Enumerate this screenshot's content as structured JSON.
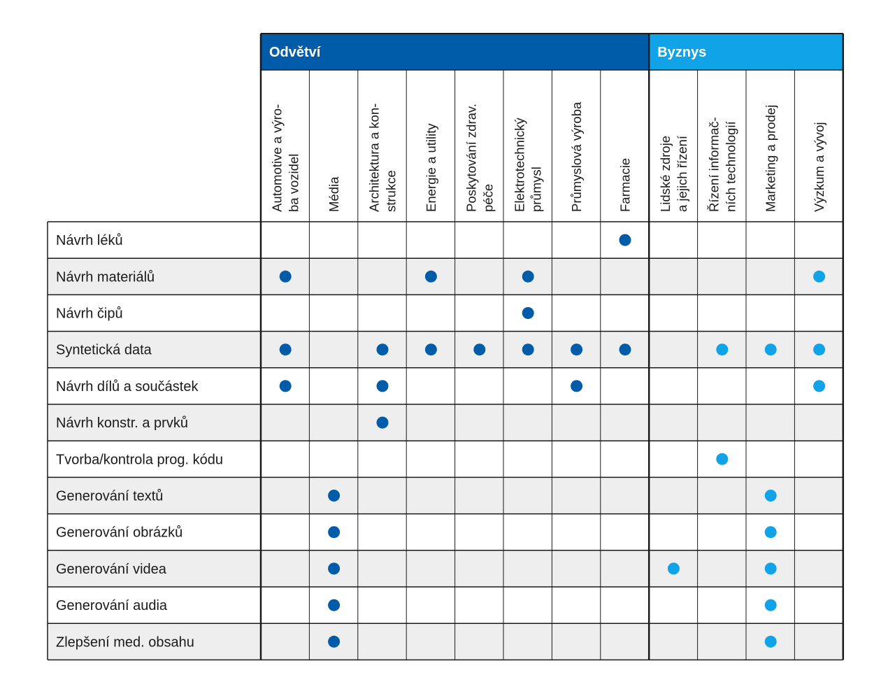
{
  "groups": [
    {
      "label": "Odvětví",
      "color": "#005ca9",
      "span": 8
    },
    {
      "label": "Byznys",
      "color": "#10a3e7",
      "span": 4
    }
  ],
  "columns": [
    {
      "lines": [
        "Automotive a výro-",
        "ba vozidel"
      ],
      "group": 0
    },
    {
      "lines": [
        "Média"
      ],
      "group": 0
    },
    {
      "lines": [
        "Architektura a kon-",
        "strukce"
      ],
      "group": 0
    },
    {
      "lines": [
        "Energie a utility"
      ],
      "group": 0
    },
    {
      "lines": [
        "Poskytování zdrav.",
        "péče"
      ],
      "group": 0
    },
    {
      "lines": [
        "Elektrotechnický",
        "průmysl"
      ],
      "group": 0
    },
    {
      "lines": [
        "Průmyslová výroba"
      ],
      "group": 0
    },
    {
      "lines": [
        "Farmacie"
      ],
      "group": 0
    },
    {
      "lines": [
        "Lidské zdroje",
        "a jejich řízení"
      ],
      "group": 1
    },
    {
      "lines": [
        "Řízení informač-",
        "ních technologií"
      ],
      "group": 1
    },
    {
      "lines": [
        "Marketing a prodej"
      ],
      "group": 1
    },
    {
      "lines": [
        "Výzkum a vývoj"
      ],
      "group": 1
    }
  ],
  "rows": [
    {
      "label": "Návrh léků",
      "marks": [
        0,
        0,
        0,
        0,
        0,
        0,
        0,
        1,
        0,
        0,
        0,
        0
      ]
    },
    {
      "label": "Návrh materiálů",
      "marks": [
        1,
        0,
        0,
        1,
        0,
        1,
        0,
        0,
        0,
        0,
        0,
        1
      ]
    },
    {
      "label": "Návrh čipů",
      "marks": [
        0,
        0,
        0,
        0,
        0,
        1,
        0,
        0,
        0,
        0,
        0,
        0
      ]
    },
    {
      "label": "Syntetická data",
      "marks": [
        1,
        0,
        1,
        1,
        1,
        1,
        1,
        1,
        0,
        1,
        1,
        1
      ]
    },
    {
      "label": "Návrh dílů a součástek",
      "marks": [
        1,
        0,
        1,
        0,
        0,
        0,
        1,
        0,
        0,
        0,
        0,
        1
      ]
    },
    {
      "label": "Návrh konstr. a prvků",
      "marks": [
        0,
        0,
        1,
        0,
        0,
        0,
        0,
        0,
        0,
        0,
        0,
        0
      ]
    },
    {
      "label": "Tvorba/kontrola prog. kódu",
      "marks": [
        0,
        0,
        0,
        0,
        0,
        0,
        0,
        0,
        0,
        1,
        0,
        0
      ]
    },
    {
      "label": "Generování textů",
      "marks": [
        0,
        1,
        0,
        0,
        0,
        0,
        0,
        0,
        0,
        0,
        1,
        0
      ]
    },
    {
      "label": "Generování obrázků",
      "marks": [
        0,
        1,
        0,
        0,
        0,
        0,
        0,
        0,
        0,
        0,
        1,
        0
      ]
    },
    {
      "label": "Generování videa",
      "marks": [
        0,
        1,
        0,
        0,
        0,
        0,
        0,
        0,
        1,
        0,
        1,
        0
      ]
    },
    {
      "label": "Generování audia",
      "marks": [
        0,
        1,
        0,
        0,
        0,
        0,
        0,
        0,
        0,
        0,
        1,
        0
      ]
    },
    {
      "label": "Zlepšení med.  obsahu",
      "marks": [
        0,
        1,
        0,
        0,
        0,
        0,
        0,
        0,
        0,
        0,
        1,
        0
      ]
    }
  ],
  "colors": {
    "stripe": "#eeeeee",
    "grid": "#1a1a1a",
    "text": "#1a1a1a"
  }
}
